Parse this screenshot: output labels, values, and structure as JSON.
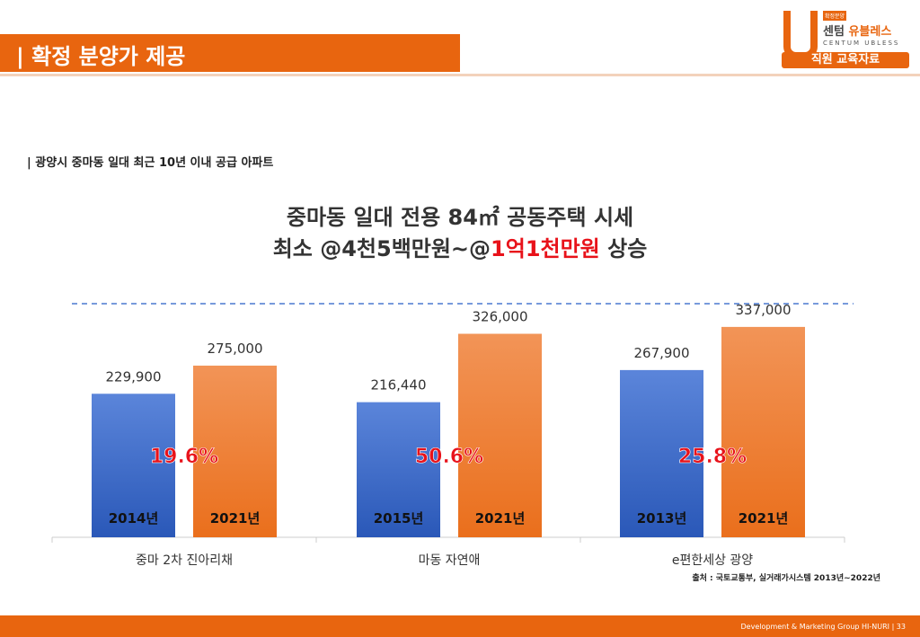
{
  "header": {
    "title": "| 확정 분양가 제공"
  },
  "logo": {
    "tag": "확정분양",
    "name_a": "센텀 ",
    "name_b": "유블레스",
    "sub": "CENTUM UBLESS",
    "badge": "직원 교육자료"
  },
  "subtitle": "| 광양시 중마동 일대 최근 10년 이내 공급 아파트",
  "headline": {
    "line1": "중마동 일대 전용 84㎡ 공동주택 시세",
    "line2_a": "최소 @4천5백만원~@",
    "line2_b": "1억1천만원",
    "line2_c": " 상승"
  },
  "colors": {
    "blue": "#3f6fcc",
    "orange": "#ee7d30",
    "accent": "#e8121a",
    "brand": "#e8650f"
  },
  "chart_data": {
    "type": "bar",
    "title": "",
    "xlabel": "",
    "ylabel": "",
    "ylim": [
      0,
      380000
    ],
    "grid": false,
    "reference_line": "dashed",
    "categories": [
      "중마 2차 진아리채",
      "마동 자연애",
      "e편한세상 광양"
    ],
    "series": [
      {
        "years": [
          "2014년",
          "2015년",
          "2013년"
        ],
        "values": [
          229900,
          216440,
          267900
        ],
        "labels": [
          "229,900",
          "216,440",
          "267,900"
        ]
      },
      {
        "years": [
          "2021년",
          "2021년",
          "2021년"
        ],
        "values": [
          275000,
          326000,
          337000
        ],
        "labels": [
          "275,000",
          "326,000",
          "337,000"
        ]
      }
    ],
    "annotations": [
      "19.6%",
      "50.6%",
      "25.8%"
    ]
  },
  "source": "출처 : 국토교통부, 실거래가시스템 2013년~2022년",
  "footer": {
    "text": "Development & Marketing Group HI-NURI  |  33"
  }
}
